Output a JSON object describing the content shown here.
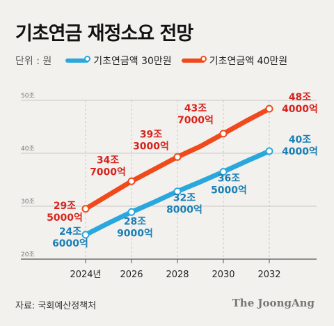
{
  "title": "기초연금 재정소요 전망",
  "legend": {
    "unit": "단위 : 원",
    "items": [
      "기초연금액 30만원",
      "기초연금액 40만원"
    ]
  },
  "colors": {
    "series_30": "#2aa7dc",
    "series_40": "#f04a1c",
    "label_30": "#1a7fb5",
    "label_40": "#d8231c",
    "grid": "#c9c7c2",
    "axis": "#555555"
  },
  "source": "자료: 국회예산정책처",
  "brand": "The JoongAng",
  "chart_data": {
    "type": "line",
    "x": [
      2024,
      2026,
      2028,
      2030,
      2032
    ],
    "x_tick_labels": [
      "2024년",
      "2026",
      "2028",
      "2030",
      "2032"
    ],
    "y_tick_labels": [
      "20조",
      "30조",
      "40조",
      "50조"
    ],
    "ylim": [
      20,
      50
    ],
    "y_ticks": [
      20,
      30,
      40,
      50
    ],
    "grid": true,
    "series": [
      {
        "name": "기초연금액 30만원",
        "points": [
          [
            2024,
            24.6
          ],
          [
            2025,
            26.8
          ],
          [
            2026,
            28.9
          ],
          [
            2027,
            30.8
          ],
          [
            2028,
            32.8
          ],
          [
            2029,
            34.6
          ],
          [
            2030,
            36.5
          ],
          [
            2031,
            38.5
          ],
          [
            2032,
            40.4
          ]
        ],
        "labels": [
          [
            "24조",
            "6000억"
          ],
          [
            "28조",
            "9000억"
          ],
          [
            "32조",
            "8000억"
          ],
          [
            "36조",
            "5000억"
          ],
          [
            "40조",
            "4000억"
          ]
        ]
      },
      {
        "name": "기초연금액 40만원",
        "points": [
          [
            2024,
            29.5
          ],
          [
            2025,
            32.1
          ],
          [
            2026,
            34.7
          ],
          [
            2027,
            37.0
          ],
          [
            2028,
            39.3
          ],
          [
            2029,
            41.3
          ],
          [
            2030,
            43.7
          ],
          [
            2031,
            46.1
          ],
          [
            2032,
            48.4
          ]
        ],
        "labels": [
          [
            "29조",
            "5000억"
          ],
          [
            "34조",
            "7000억"
          ],
          [
            "39조",
            "3000억"
          ],
          [
            "43조",
            "7000억"
          ],
          [
            "48조",
            "4000억"
          ]
        ]
      }
    ]
  }
}
